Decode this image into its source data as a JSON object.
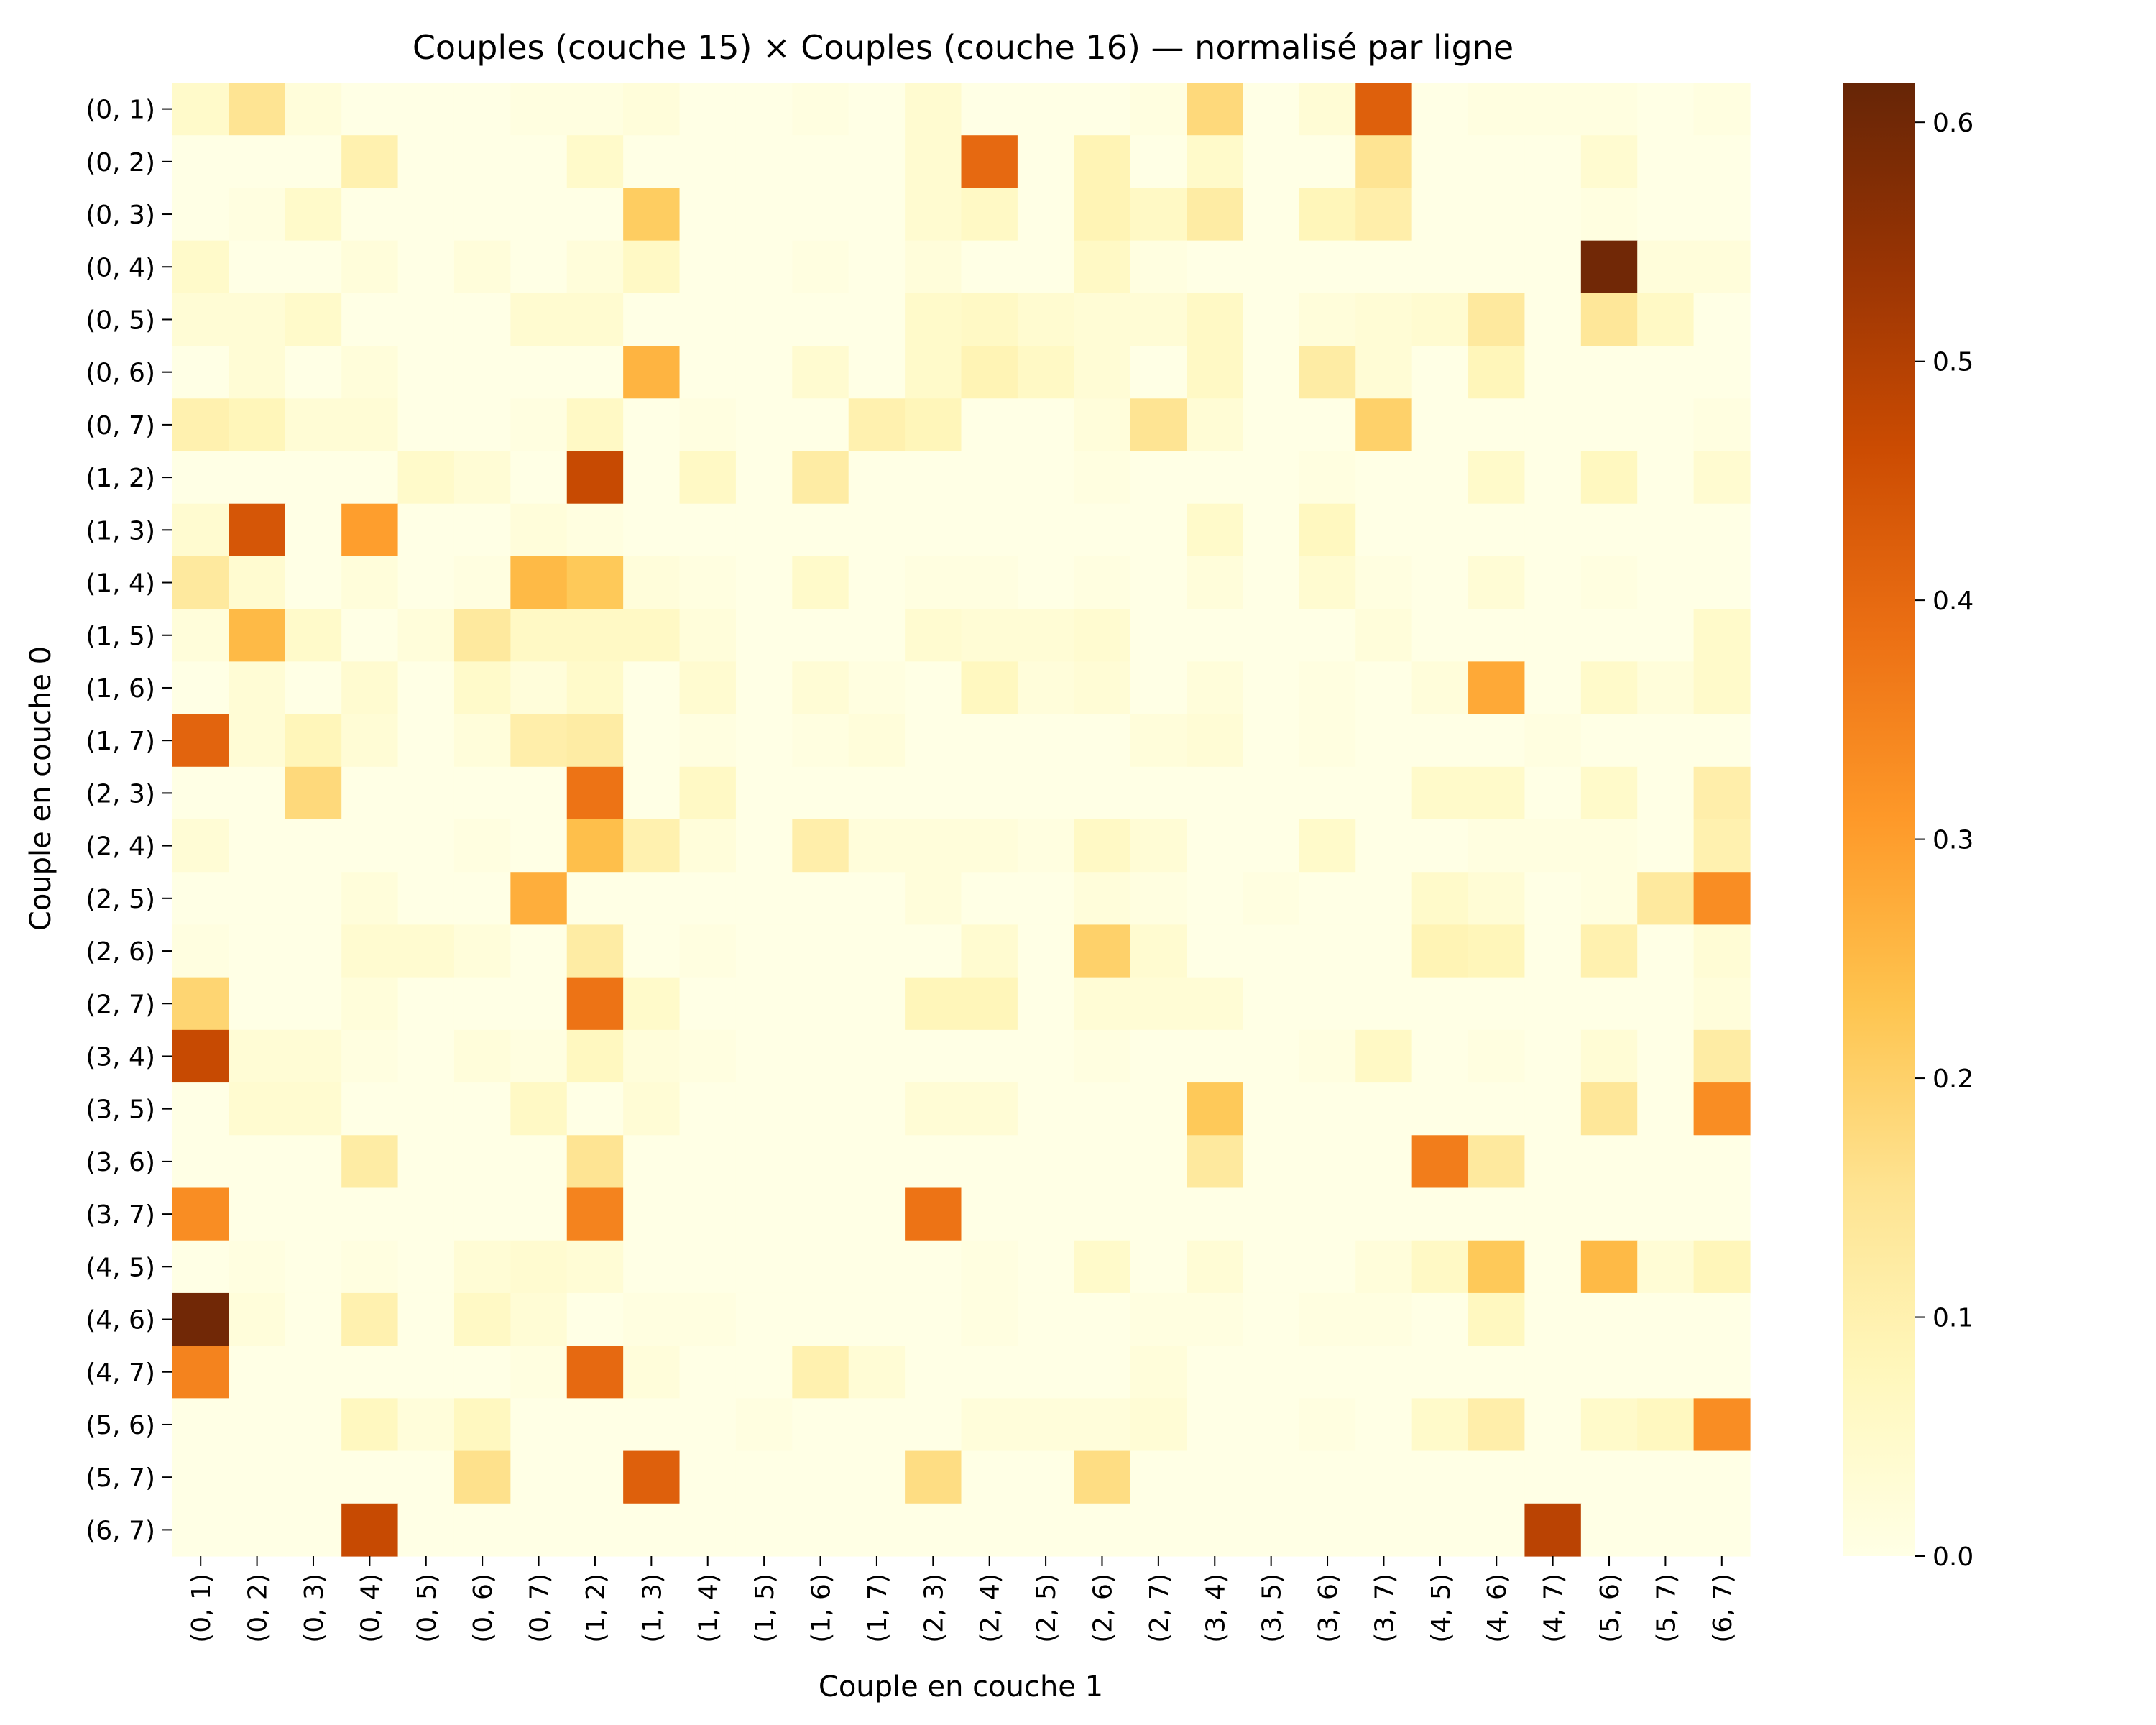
{
  "chart_data": {
    "type": "heatmap",
    "title": "Couples (couche 15)  ×  Couples (couche 16) — normalisé par ligne",
    "xlabel": "Couple en couche 1",
    "ylabel": "Couple en couche 0",
    "row_labels": [
      "(0, 1)",
      "(0, 2)",
      "(0, 3)",
      "(0, 4)",
      "(0, 5)",
      "(0, 6)",
      "(0, 7)",
      "(1, 2)",
      "(1, 3)",
      "(1, 4)",
      "(1, 5)",
      "(1, 6)",
      "(1, 7)",
      "(2, 3)",
      "(2, 4)",
      "(2, 5)",
      "(2, 6)",
      "(2, 7)",
      "(3, 4)",
      "(3, 5)",
      "(3, 6)",
      "(3, 7)",
      "(4, 5)",
      "(4, 6)",
      "(4, 7)",
      "(5, 6)",
      "(5, 7)",
      "(6, 7)"
    ],
    "col_labels": [
      "(0, 1)",
      "(0, 2)",
      "(0, 3)",
      "(0, 4)",
      "(0, 5)",
      "(0, 6)",
      "(0, 7)",
      "(1, 2)",
      "(1, 3)",
      "(1, 4)",
      "(1, 5)",
      "(1, 6)",
      "(1, 7)",
      "(2, 3)",
      "(2, 4)",
      "(2, 5)",
      "(2, 6)",
      "(2, 7)",
      "(3, 4)",
      "(3, 5)",
      "(3, 6)",
      "(3, 7)",
      "(4, 5)",
      "(4, 6)",
      "(4, 7)",
      "(5, 6)",
      "(5, 7)",
      "(6, 7)"
    ],
    "values": [
      [
        0.05,
        0.15,
        0.02,
        0,
        0,
        0,
        0.01,
        0.01,
        0.02,
        0,
        0,
        0.01,
        0,
        0.04,
        0,
        0,
        0,
        0.01,
        0.18,
        0,
        0.03,
        0.42,
        0,
        0.01,
        0.01,
        0.01,
        0,
        0.01
      ],
      [
        0,
        0,
        0,
        0.1,
        0,
        0,
        0,
        0.05,
        0,
        0,
        0,
        0,
        0,
        0.04,
        0.4,
        0,
        0.09,
        0,
        0.05,
        0,
        0,
        0.15,
        0,
        0,
        0,
        0.04,
        0,
        0
      ],
      [
        0,
        0.01,
        0.05,
        0,
        0,
        0,
        0,
        0,
        0.21,
        0,
        0,
        0,
        0,
        0.04,
        0.06,
        0,
        0.09,
        0.06,
        0.12,
        0,
        0.08,
        0.11,
        0,
        0,
        0,
        0.01,
        0,
        0
      ],
      [
        0.05,
        0,
        0,
        0.02,
        0,
        0.02,
        0,
        0.02,
        0.06,
        0,
        0,
        0.01,
        0,
        0.02,
        0,
        0,
        0.06,
        0.01,
        0,
        0,
        0,
        0,
        0,
        0,
        0,
        0.6,
        0.02,
        0.02
      ],
      [
        0.03,
        0.03,
        0.05,
        0,
        0,
        0,
        0.04,
        0.04,
        0,
        0,
        0,
        0,
        0,
        0.05,
        0.06,
        0.04,
        0.03,
        0.03,
        0.06,
        0,
        0.02,
        0.03,
        0.04,
        0.13,
        0,
        0.14,
        0.06,
        0
      ],
      [
        0,
        0.03,
        0,
        0.02,
        0,
        0,
        0,
        0,
        0.26,
        0,
        0,
        0.04,
        0,
        0.05,
        0.09,
        0.06,
        0.03,
        0,
        0.06,
        0,
        0.12,
        0.03,
        0,
        0.08,
        0,
        0,
        0,
        0
      ],
      [
        0.1,
        0.08,
        0.03,
        0.03,
        0,
        0,
        0.01,
        0.06,
        0,
        0.01,
        0,
        0,
        0.1,
        0.08,
        0,
        0,
        0.02,
        0.15,
        0.03,
        0,
        0,
        0.2,
        0,
        0,
        0,
        0,
        0,
        0.01
      ],
      [
        0,
        0,
        0,
        0,
        0.05,
        0.03,
        0,
        0.47,
        0,
        0.06,
        0,
        0.12,
        0,
        0,
        0,
        0,
        0.01,
        0,
        0,
        0,
        0.01,
        0,
        0,
        0.05,
        0,
        0.07,
        0,
        0.04
      ],
      [
        0.04,
        0.44,
        0,
        0.3,
        0,
        0,
        0.02,
        0.01,
        0,
        0,
        0,
        0,
        0,
        0,
        0,
        0,
        0,
        0,
        0.05,
        0,
        0.07,
        0,
        0,
        0,
        0,
        0,
        0,
        0
      ],
      [
        0.13,
        0.04,
        0,
        0.02,
        0,
        0.01,
        0.25,
        0.22,
        0.02,
        0.01,
        0,
        0.05,
        0,
        0.01,
        0.01,
        0,
        0.01,
        0,
        0.02,
        0,
        0.04,
        0.01,
        0,
        0.03,
        0,
        0.01,
        0,
        0
      ],
      [
        0.02,
        0.25,
        0.05,
        0,
        0.02,
        0.13,
        0.06,
        0.06,
        0.06,
        0.02,
        0,
        0,
        0,
        0.04,
        0.03,
        0.03,
        0.04,
        0,
        0,
        0,
        0,
        0.02,
        0,
        0,
        0,
        0,
        0,
        0.05
      ],
      [
        0,
        0.03,
        0,
        0.04,
        0,
        0.05,
        0.02,
        0.05,
        0,
        0.04,
        0,
        0.03,
        0.01,
        0,
        0.07,
        0.02,
        0.03,
        0,
        0.02,
        0,
        0.01,
        0,
        0.02,
        0.28,
        0,
        0.05,
        0.02,
        0.05
      ],
      [
        0.41,
        0.03,
        0.08,
        0.03,
        0,
        0.02,
        0.11,
        0.12,
        0,
        0.01,
        0,
        0.01,
        0.02,
        0,
        0,
        0,
        0,
        0.02,
        0.03,
        0,
        0.01,
        0,
        0,
        0,
        0.01,
        0,
        0,
        0
      ],
      [
        0,
        0,
        0.18,
        0,
        0,
        0,
        0,
        0.38,
        0,
        0.06,
        0,
        0,
        0,
        0,
        0,
        0,
        0,
        0,
        0,
        0,
        0,
        0,
        0.05,
        0.05,
        0,
        0.05,
        0,
        0.11
      ],
      [
        0.03,
        0,
        0,
        0,
        0,
        0.01,
        0,
        0.24,
        0.1,
        0.02,
        0,
        0.11,
        0.02,
        0.02,
        0.02,
        0.01,
        0.06,
        0.03,
        0,
        0,
        0.05,
        0,
        0,
        0.01,
        0.01,
        0.01,
        0,
        0.1
      ],
      [
        0,
        0,
        0,
        0.02,
        0,
        0,
        0.27,
        0,
        0,
        0,
        0,
        0,
        0,
        0.02,
        0,
        0,
        0.02,
        0.01,
        0,
        0.01,
        0,
        0,
        0.05,
        0.03,
        0,
        0.01,
        0.13,
        0.33
      ],
      [
        0.01,
        0,
        0,
        0.04,
        0.04,
        0.02,
        0,
        0.12,
        0,
        0.01,
        0,
        0,
        0,
        0,
        0.04,
        0,
        0.2,
        0.04,
        0,
        0,
        0,
        0,
        0.09,
        0.08,
        0,
        0.1,
        0,
        0.03
      ],
      [
        0.19,
        0,
        0,
        0.02,
        0,
        0,
        0,
        0.38,
        0.05,
        0,
        0,
        0,
        0,
        0.08,
        0.08,
        0,
        0.03,
        0.03,
        0.03,
        0,
        0,
        0,
        0,
        0,
        0,
        0,
        0,
        0.02
      ],
      [
        0.47,
        0.03,
        0.03,
        0.01,
        0,
        0.02,
        0.01,
        0.07,
        0.02,
        0.01,
        0,
        0,
        0,
        0,
        0,
        0,
        0.01,
        0,
        0,
        0,
        0.01,
        0.06,
        0,
        0.01,
        0,
        0.03,
        0,
        0.12
      ],
      [
        0,
        0.04,
        0.04,
        0,
        0,
        0,
        0.06,
        0,
        0.03,
        0,
        0,
        0,
        0,
        0.03,
        0.03,
        0,
        0,
        0,
        0.22,
        0,
        0,
        0,
        0,
        0,
        0,
        0.14,
        0,
        0.33
      ],
      [
        0,
        0,
        0,
        0.12,
        0,
        0,
        0,
        0.15,
        0,
        0,
        0,
        0,
        0,
        0,
        0,
        0,
        0,
        0,
        0.13,
        0,
        0,
        0,
        0.36,
        0.13,
        0,
        0,
        0,
        0
      ],
      [
        0.33,
        0,
        0,
        0,
        0,
        0,
        0,
        0.35,
        0,
        0,
        0,
        0,
        0,
        0.38,
        0,
        0,
        0,
        0,
        0,
        0,
        0,
        0,
        0,
        0,
        0,
        0,
        0,
        0
      ],
      [
        0,
        0.01,
        0,
        0.01,
        0,
        0.03,
        0.04,
        0.03,
        0,
        0,
        0,
        0,
        0,
        0,
        0.01,
        0,
        0.05,
        0,
        0.03,
        0,
        0,
        0.02,
        0.06,
        0.22,
        0,
        0.25,
        0.03,
        0.08
      ],
      [
        0.6,
        0.02,
        0,
        0.1,
        0,
        0.06,
        0.03,
        0,
        0.01,
        0.01,
        0,
        0,
        0,
        0,
        0.01,
        0,
        0,
        0.01,
        0.01,
        0,
        0.01,
        0.01,
        0,
        0.07,
        0,
        0,
        0,
        0
      ],
      [
        0.35,
        0,
        0,
        0,
        0,
        0,
        0.01,
        0.4,
        0.02,
        0,
        0,
        0.1,
        0.03,
        0,
        0,
        0,
        0,
        0.02,
        0,
        0,
        0,
        0,
        0,
        0,
        0,
        0,
        0,
        0
      ],
      [
        0,
        0,
        0,
        0.07,
        0.02,
        0.07,
        0,
        0,
        0,
        0,
        0.01,
        0,
        0,
        0,
        0.02,
        0.02,
        0.02,
        0.03,
        0,
        0,
        0.01,
        0,
        0.05,
        0.11,
        0,
        0.05,
        0.07,
        0.33
      ],
      [
        0,
        0,
        0,
        0,
        0,
        0.16,
        0,
        0,
        0.42,
        0,
        0,
        0,
        0,
        0.17,
        0,
        0,
        0.17,
        0,
        0,
        0,
        0,
        0,
        0,
        0,
        0,
        0,
        0,
        0
      ],
      [
        0,
        0,
        0,
        0.47,
        0,
        0,
        0,
        0,
        0,
        0,
        0,
        0,
        0,
        0,
        0,
        0,
        0,
        0,
        0,
        0,
        0,
        0,
        0,
        0,
        0.49,
        0,
        0,
        0
      ]
    ],
    "colormap": "YlOrBr",
    "colorbar": {
      "min": 0.0,
      "max": 0.6166,
      "ticks": [
        "0.0",
        "0.1",
        "0.2",
        "0.3",
        "0.4",
        "0.5",
        "0.6"
      ]
    }
  }
}
